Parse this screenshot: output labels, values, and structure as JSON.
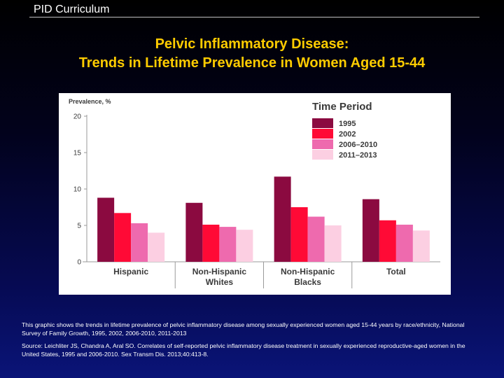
{
  "header": {
    "label": "PID Curriculum"
  },
  "title": {
    "line1": "Pelvic Inflammatory Disease:",
    "line2": "Trends in Lifetime Prevalence in Women Aged 15-44"
  },
  "chart_data": {
    "type": "bar",
    "ylabel": "Prevalence, %",
    "ylim": [
      0,
      20
    ],
    "yticks": [
      "0",
      "5",
      "10",
      "15",
      "20"
    ],
    "legend_title": "Time Period",
    "legend_position": "top-right",
    "grid": false,
    "categories": [
      [
        "Hispanic"
      ],
      [
        "Non-Hispanic",
        "Whites"
      ],
      [
        "Non-Hispanic",
        "Blacks"
      ],
      [
        "Total"
      ]
    ],
    "series": [
      {
        "name": "1995",
        "color": "#8b0a40",
        "values": [
          8.8,
          8.1,
          11.7,
          8.6
        ]
      },
      {
        "name": "2002",
        "color": "#ff0a36",
        "values": [
          6.7,
          5.1,
          7.5,
          5.7
        ]
      },
      {
        "name": "2006–2010",
        "color": "#ee6aae",
        "values": [
          5.3,
          4.8,
          6.2,
          5.1
        ]
      },
      {
        "name": "2011–2013",
        "color": "#fccfe2",
        "values": [
          4.0,
          4.4,
          5.0,
          4.3
        ]
      }
    ]
  },
  "notes": {
    "description": "This graphic shows the trends in lifetime prevalence of pelvic inflammatory disease among sexually experienced women aged 15-44 years by race/ethnicity, National Survey of Family Growth, 1995, 2002, 2006-2010, 2011-2013",
    "source": "Source: Leichliter JS, Chandra A, Aral SO. Correlates of self-reported pelvic inflammatory disease treatment in sexually experienced reproductive-aged women in the United States, 1995 and 2006-2010. Sex Transm Dis. 2013;40:413-8."
  }
}
